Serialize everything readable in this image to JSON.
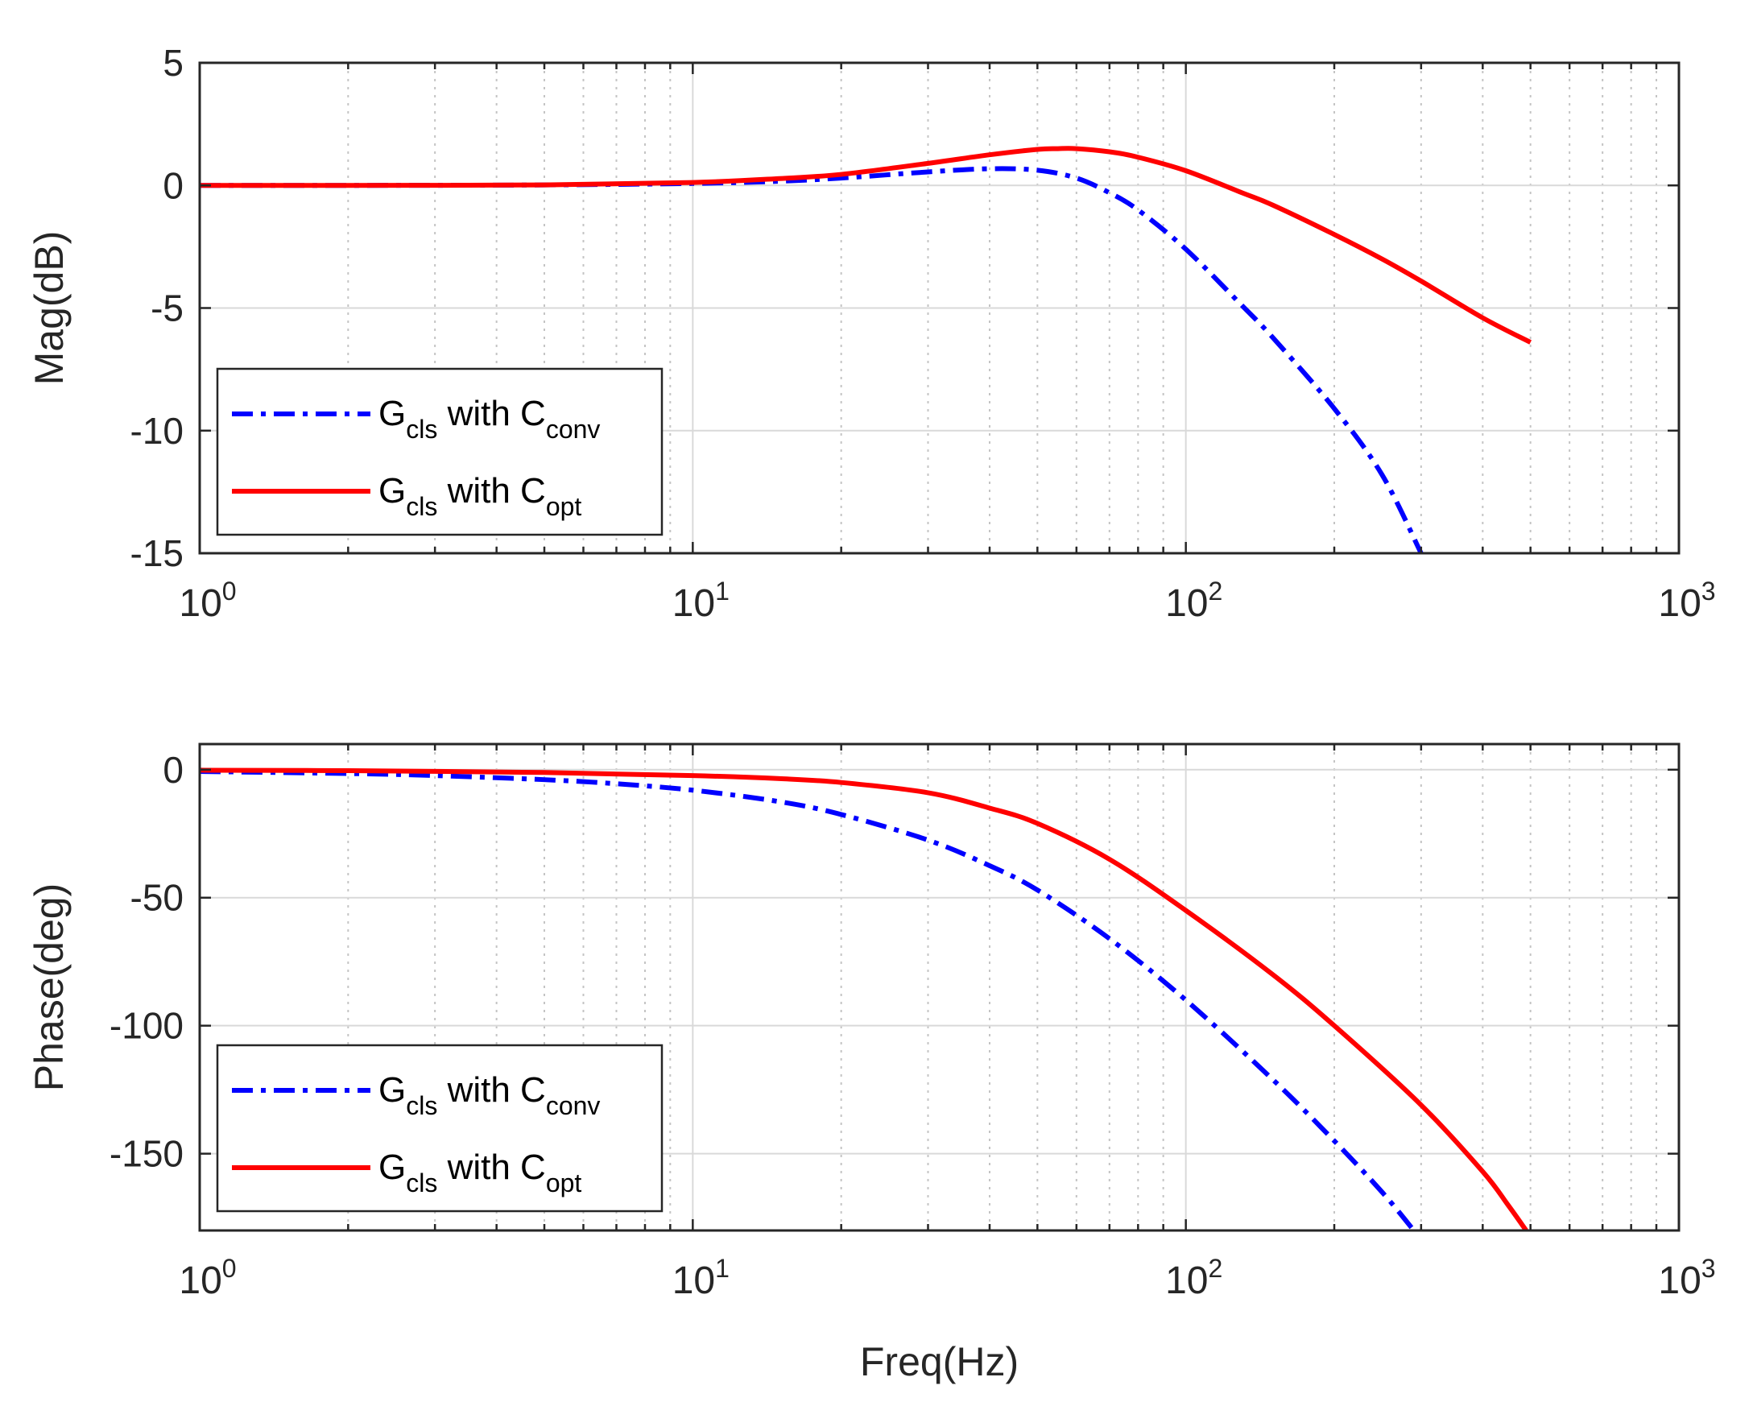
{
  "chart_data": [
    {
      "type": "line",
      "id": "magnitude",
      "xscale": "log",
      "xlim": [
        1,
        1000
      ],
      "ylim": [
        -15,
        5
      ],
      "ylabel": "Mag(dB)",
      "xlabel": "",
      "grid": true,
      "xticks": [
        {
          "base": "10",
          "exp": "0"
        },
        {
          "base": "10",
          "exp": "1"
        },
        {
          "base": "10",
          "exp": "2"
        },
        {
          "base": "10",
          "exp": "3"
        }
      ],
      "yticks": [
        "5",
        "0",
        "-5",
        "-10",
        "-15"
      ],
      "ytick_values": [
        5,
        0,
        -5,
        -10,
        -15
      ],
      "legend_position": "bottom-left",
      "series": [
        {
          "name": "G_cls with C_conv",
          "legend": {
            "g": "G",
            "g_sub": "cls",
            "mid": " with C",
            "c_sub": "conv"
          },
          "color": "#0000ff",
          "style": "dashdot",
          "x": [
            1,
            2,
            5,
            10,
            15,
            20,
            30,
            40,
            50,
            60,
            70,
            80,
            100,
            130,
            150,
            200,
            250,
            300
          ],
          "y": [
            0,
            0,
            0.02,
            0.08,
            0.17,
            0.3,
            0.55,
            0.68,
            0.62,
            0.3,
            -0.3,
            -1.0,
            -2.6,
            -4.9,
            -6.2,
            -9.1,
            -11.8,
            -15
          ]
        },
        {
          "name": "G_cls with C_opt",
          "legend": {
            "g": "G",
            "g_sub": "cls",
            "mid": " with C",
            "c_sub": "opt"
          },
          "color": "#ff0000",
          "style": "solid",
          "x": [
            1,
            2,
            5,
            10,
            15,
            20,
            30,
            40,
            50,
            55,
            60,
            70,
            80,
            100,
            130,
            150,
            200,
            250,
            300,
            400,
            500
          ],
          "y": [
            0,
            0,
            0.02,
            0.12,
            0.28,
            0.45,
            0.9,
            1.25,
            1.47,
            1.5,
            1.5,
            1.37,
            1.15,
            0.6,
            -0.3,
            -0.8,
            -2.0,
            -3.0,
            -3.9,
            -5.4,
            -6.4
          ]
        }
      ]
    },
    {
      "type": "line",
      "id": "phase",
      "xscale": "log",
      "xlim": [
        1,
        1000
      ],
      "ylim": [
        -180,
        10
      ],
      "ylabel": "Phase(deg)",
      "xlabel": "Freq(Hz)",
      "grid": true,
      "xticks": [
        {
          "base": "10",
          "exp": "0"
        },
        {
          "base": "10",
          "exp": "1"
        },
        {
          "base": "10",
          "exp": "2"
        },
        {
          "base": "10",
          "exp": "3"
        }
      ],
      "yticks": [
        "0",
        "-50",
        "-100",
        "-150"
      ],
      "ytick_values": [
        0,
        -50,
        -100,
        -150
      ],
      "legend_position": "bottom-left",
      "series": [
        {
          "name": "G_cls with C_conv",
          "legend": {
            "g": "G",
            "g_sub": "cls",
            "mid": " with C",
            "c_sub": "conv"
          },
          "color": "#0000ff",
          "style": "dashdot",
          "x": [
            1,
            2,
            3,
            5,
            7,
            10,
            15,
            20,
            30,
            40,
            50,
            70,
            100,
            150,
            200,
            250,
            290
          ],
          "y": [
            -0.7,
            -1.5,
            -2.3,
            -3.9,
            -5.5,
            -8,
            -12.5,
            -17.5,
            -27.5,
            -37.5,
            -47,
            -66,
            -90,
            -121,
            -145,
            -165,
            -180
          ]
        },
        {
          "name": "G_cls with C_opt",
          "legend": {
            "g": "G",
            "g_sub": "cls",
            "mid": " with C",
            "c_sub": "opt"
          },
          "color": "#ff0000",
          "style": "solid",
          "x": [
            1,
            2,
            5,
            10,
            15,
            20,
            30,
            40,
            50,
            70,
            100,
            150,
            200,
            300,
            400,
            450,
            490
          ],
          "y": [
            -0.2,
            -0.4,
            -1.1,
            -2.3,
            -3.5,
            -5,
            -9,
            -15,
            -21,
            -35,
            -55,
            -80,
            -100,
            -131,
            -157,
            -170,
            -180
          ]
        }
      ]
    }
  ]
}
